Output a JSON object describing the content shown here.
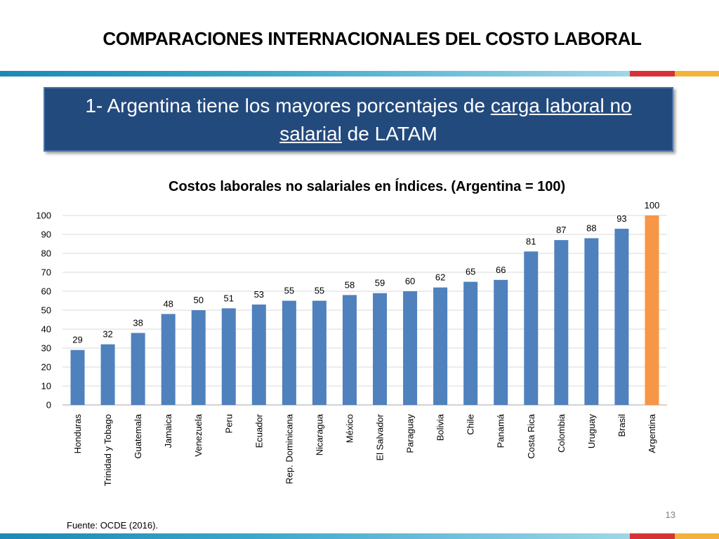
{
  "slide": {
    "title": "COMPARACIONES INTERNACIONALES DEL COSTO LABORAL",
    "banner": {
      "before": "1- Argentina tiene los mayores porcentajes de ",
      "underlined_1": "carga laboral no",
      "underlined_2": "salarial",
      "after": " de LATAM"
    },
    "source": "Fuente: OCDE (2016).",
    "page_number": "13"
  },
  "colors": {
    "bar": "#4f81bd",
    "highlight_bar": "#f79646",
    "banner_bg": "#234a7d",
    "stripe_red": "#d63338",
    "stripe_gold": "#f2b33d"
  },
  "chart_data": {
    "type": "bar",
    "title": "Costos laborales no salariales en Índices. (Argentina = 100)",
    "categories": [
      "Honduras",
      "Trinidad y Tobago",
      "Guatemala",
      "Jamaica",
      "Venezuela",
      "Peru",
      "Ecuador",
      "Rep. Dominicana",
      "Nicaragua",
      "México",
      "El Salvador",
      "Paraguay",
      "Bolivia",
      "Chile",
      "Panamá",
      "Costa Rica",
      "Colombia",
      "Uruguay",
      "Brasil",
      "Argentina"
    ],
    "values": [
      29,
      32,
      38,
      48,
      50,
      51,
      53,
      55,
      55,
      58,
      59,
      60,
      62,
      65,
      66,
      81,
      87,
      88,
      93,
      100
    ],
    "value_labels": [
      "29",
      "32",
      "38",
      "48",
      "50",
      "51",
      "53",
      "55",
      "55",
      "58",
      "59",
      "60",
      "62",
      "65",
      "66",
      "81",
      "87",
      "88",
      "93",
      "100"
    ],
    "highlight_category": "Argentina",
    "ylim": [
      0,
      100
    ],
    "yticks": [
      0,
      10,
      20,
      30,
      40,
      50,
      60,
      70,
      80,
      90,
      100
    ],
    "grid": true,
    "legend": false,
    "xlabel": "",
    "ylabel": ""
  }
}
